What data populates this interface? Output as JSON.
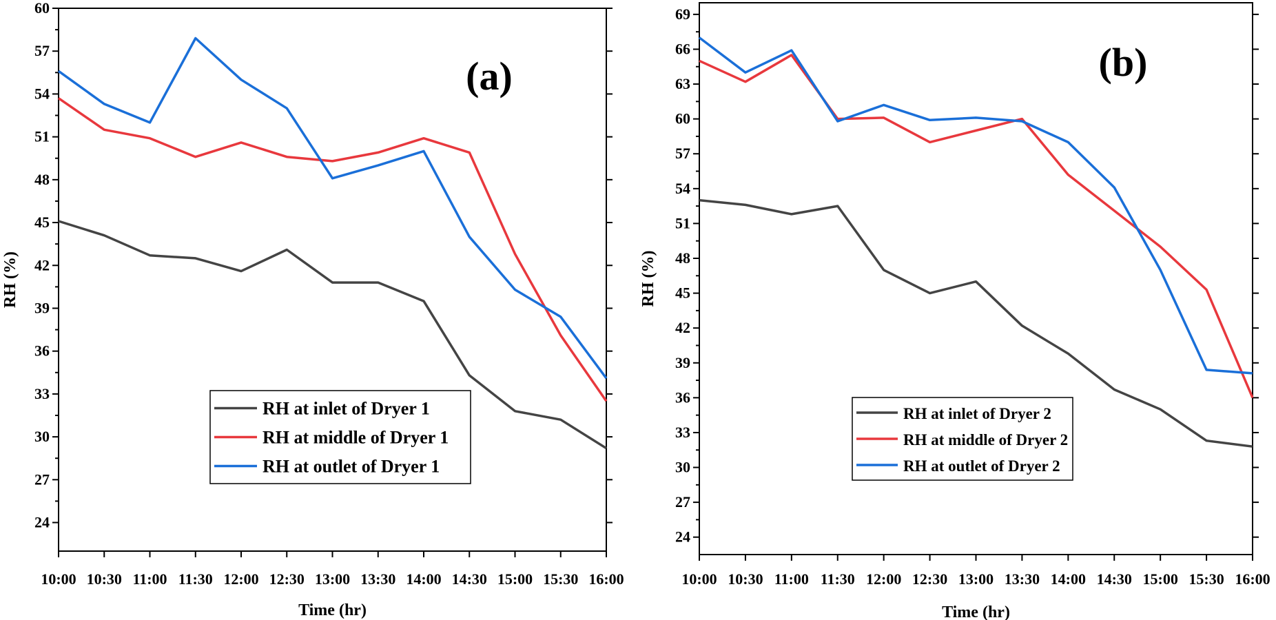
{
  "chart_data": [
    {
      "type": "line",
      "title": "(a)",
      "xlabel": "Time (hr)",
      "ylabel": "RH (%)",
      "ylim": [
        22,
        60
      ],
      "yticks": [
        24,
        27,
        30,
        33,
        36,
        39,
        42,
        45,
        48,
        51,
        54,
        57,
        60
      ],
      "categories": [
        "10:00",
        "10:30",
        "11:00",
        "11:30",
        "12:00",
        "12:30",
        "13:00",
        "13:30",
        "14:00",
        "14:30",
        "15:00",
        "15:30",
        "16:00"
      ],
      "legend_position": "lower-center",
      "series": [
        {
          "name": "RH at inlet of Dryer 1",
          "color": "#444444",
          "values": [
            45.1,
            44.1,
            42.7,
            42.5,
            41.6,
            43.1,
            40.8,
            40.8,
            39.5,
            34.3,
            31.8,
            31.2,
            29.2
          ]
        },
        {
          "name": "RH at middle of Dryer 1",
          "color": "#e8383d",
          "values": [
            53.7,
            51.5,
            50.9,
            49.6,
            50.6,
            49.6,
            49.3,
            49.9,
            50.9,
            49.9,
            42.8,
            37.1,
            32.5
          ]
        },
        {
          "name": "RH at outlet of Dryer 1",
          "color": "#1a6fd8",
          "values": [
            55.6,
            53.3,
            52.0,
            57.9,
            55.0,
            53.0,
            48.1,
            49.0,
            50.0,
            44.0,
            40.3,
            38.4,
            34.1
          ]
        }
      ]
    },
    {
      "type": "line",
      "title": "(b)",
      "xlabel": "Time (hr)",
      "ylabel": "RH (%)",
      "ylim": [
        22.5,
        70
      ],
      "yticks": [
        24,
        27,
        30,
        33,
        36,
        39,
        42,
        45,
        48,
        51,
        54,
        57,
        60,
        63,
        66,
        69
      ],
      "categories": [
        "10:00",
        "10:30",
        "11:00",
        "11:30",
        "12:00",
        "12:30",
        "13:00",
        "13:30",
        "14:00",
        "14:30",
        "15:00",
        "15:30",
        "16:00"
      ],
      "legend_position": "lower-center",
      "series": [
        {
          "name": "RH at inlet of Dryer 2",
          "color": "#444444",
          "values": [
            53.0,
            52.6,
            51.8,
            52.5,
            47.0,
            45.0,
            46.0,
            42.2,
            39.8,
            36.7,
            35.0,
            32.3,
            31.8
          ]
        },
        {
          "name": "RH at middle of Dryer 2",
          "color": "#e8383d",
          "values": [
            65.0,
            63.2,
            65.5,
            60.0,
            60.1,
            58.0,
            59.0,
            60.0,
            55.2,
            52.1,
            49.0,
            45.3,
            36.0
          ]
        },
        {
          "name": "RH at outlet of Dryer 2",
          "color": "#1a6fd8",
          "values": [
            67.0,
            64.0,
            65.9,
            59.8,
            61.2,
            59.9,
            60.1,
            59.8,
            58.0,
            54.1,
            47.0,
            38.4,
            38.1
          ]
        }
      ]
    }
  ]
}
